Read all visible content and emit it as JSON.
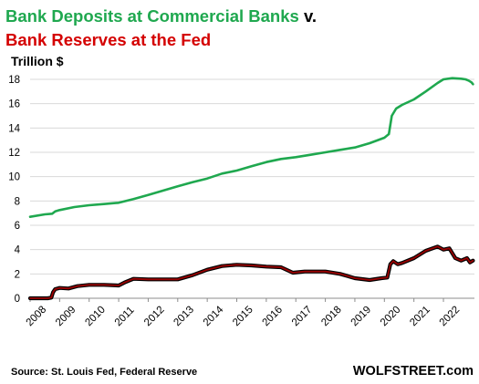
{
  "chart_data": {
    "type": "line",
    "title_part1": "Bank Deposits at Commercial Banks",
    "title_part2": " v.",
    "title_line2": "Bank Reserves at the Fed",
    "ylabel": "Trillion $",
    "ylim": [
      0,
      18
    ],
    "y_ticks": [
      0,
      2,
      4,
      6,
      8,
      10,
      12,
      14,
      16,
      18
    ],
    "x_ticks": [
      "2008",
      "2009",
      "2010",
      "2011",
      "2012",
      "2013",
      "2014",
      "2015",
      "2016",
      "2017",
      "2018",
      "2019",
      "2020",
      "2021",
      "2022"
    ],
    "xlim": [
      2008.0,
      2023.05
    ],
    "grid": true,
    "source": "Source: St. Louis Fed, Federal Reserve",
    "brand": "WOLFSTREET.com",
    "series": [
      {
        "name": "Bank Deposits at Commercial Banks",
        "color": "#1fa84f",
        "points": [
          [
            2008.0,
            6.7
          ],
          [
            2008.5,
            6.9
          ],
          [
            2008.75,
            6.95
          ],
          [
            2008.85,
            7.15
          ],
          [
            2009.0,
            7.25
          ],
          [
            2009.5,
            7.5
          ],
          [
            2010.0,
            7.65
          ],
          [
            2010.5,
            7.75
          ],
          [
            2011.0,
            7.85
          ],
          [
            2011.5,
            8.15
          ],
          [
            2012.0,
            8.5
          ],
          [
            2012.5,
            8.85
          ],
          [
            2013.0,
            9.2
          ],
          [
            2013.5,
            9.55
          ],
          [
            2014.0,
            9.85
          ],
          [
            2014.5,
            10.25
          ],
          [
            2015.0,
            10.5
          ],
          [
            2015.5,
            10.85
          ],
          [
            2016.0,
            11.2
          ],
          [
            2016.5,
            11.45
          ],
          [
            2017.0,
            11.6
          ],
          [
            2017.5,
            11.8
          ],
          [
            2018.0,
            12.0
          ],
          [
            2018.5,
            12.2
          ],
          [
            2019.0,
            12.4
          ],
          [
            2019.5,
            12.75
          ],
          [
            2020.0,
            13.2
          ],
          [
            2020.15,
            13.5
          ],
          [
            2020.25,
            15.0
          ],
          [
            2020.4,
            15.6
          ],
          [
            2020.6,
            15.9
          ],
          [
            2021.0,
            16.35
          ],
          [
            2021.4,
            17.0
          ],
          [
            2021.8,
            17.7
          ],
          [
            2022.0,
            18.0
          ],
          [
            2022.3,
            18.1
          ],
          [
            2022.6,
            18.05
          ],
          [
            2022.75,
            18.0
          ],
          [
            2022.85,
            17.9
          ],
          [
            2022.95,
            17.75
          ],
          [
            2023.0,
            17.6
          ]
        ]
      },
      {
        "name": "Bank Reserves at the Fed",
        "color": "#9b0000",
        "points": [
          [
            2008.0,
            0.0
          ],
          [
            2008.6,
            0.0
          ],
          [
            2008.72,
            0.05
          ],
          [
            2008.78,
            0.5
          ],
          [
            2008.85,
            0.75
          ],
          [
            2009.0,
            0.85
          ],
          [
            2009.3,
            0.8
          ],
          [
            2009.6,
            1.0
          ],
          [
            2010.0,
            1.1
          ],
          [
            2010.5,
            1.1
          ],
          [
            2011.0,
            1.05
          ],
          [
            2011.2,
            1.3
          ],
          [
            2011.5,
            1.6
          ],
          [
            2012.0,
            1.55
          ],
          [
            2012.5,
            1.55
          ],
          [
            2013.0,
            1.55
          ],
          [
            2013.5,
            1.9
          ],
          [
            2014.0,
            2.35
          ],
          [
            2014.5,
            2.65
          ],
          [
            2015.0,
            2.75
          ],
          [
            2015.5,
            2.7
          ],
          [
            2016.0,
            2.6
          ],
          [
            2016.5,
            2.55
          ],
          [
            2016.9,
            2.1
          ],
          [
            2017.3,
            2.2
          ],
          [
            2017.7,
            2.2
          ],
          [
            2018.0,
            2.2
          ],
          [
            2018.5,
            2.0
          ],
          [
            2019.0,
            1.65
          ],
          [
            2019.5,
            1.5
          ],
          [
            2019.9,
            1.65
          ],
          [
            2020.1,
            1.7
          ],
          [
            2020.2,
            2.8
          ],
          [
            2020.3,
            3.05
          ],
          [
            2020.45,
            2.8
          ],
          [
            2020.6,
            2.9
          ],
          [
            2021.0,
            3.3
          ],
          [
            2021.4,
            3.9
          ],
          [
            2021.8,
            4.25
          ],
          [
            2022.0,
            4.0
          ],
          [
            2022.2,
            4.1
          ],
          [
            2022.4,
            3.3
          ],
          [
            2022.6,
            3.1
          ],
          [
            2022.8,
            3.3
          ],
          [
            2022.9,
            2.95
          ],
          [
            2023.0,
            3.1
          ]
        ]
      }
    ]
  }
}
